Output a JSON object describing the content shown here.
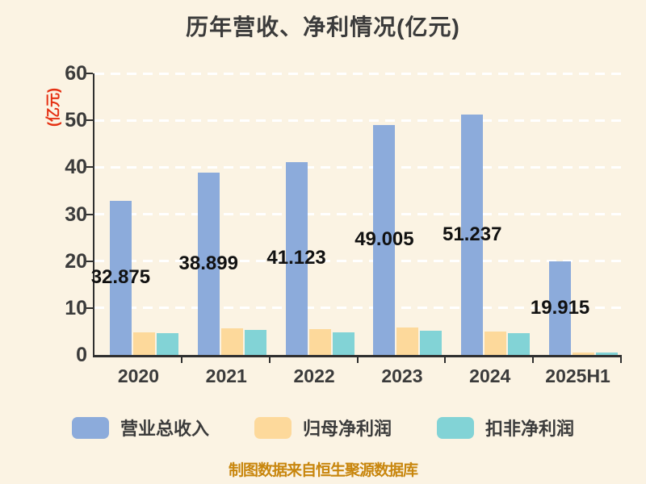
{
  "title": "历年营收、净利情况(亿元)",
  "y_axis_title": "(亿元)",
  "footer": "制图数据来自恒生聚源数据库",
  "colors": {
    "background": "#fbf3e3",
    "axis": "#2f2f2f",
    "grid": "#ffffff",
    "text": "#3b3b3b",
    "value_label": "#111111",
    "y_axis_title": "#e53012",
    "footer": "#c8860d"
  },
  "chart_data": {
    "type": "bar",
    "title": "历年营收、净利情况(亿元)",
    "ylabel": "(亿元)",
    "categories": [
      "2020",
      "2021",
      "2022",
      "2023",
      "2024",
      "2025H1"
    ],
    "series": [
      {
        "name": "营业总收入",
        "color": "#8cabdb",
        "values": [
          32.875,
          38.899,
          41.123,
          49.005,
          51.237,
          19.915
        ]
      },
      {
        "name": "归母净利润",
        "color": "#fdd99b",
        "values": [
          4.8,
          5.7,
          5.5,
          5.8,
          5.0,
          0.6
        ]
      },
      {
        "name": "扣非净利润",
        "color": "#82d3d6",
        "values": [
          4.6,
          5.3,
          4.9,
          5.2,
          4.7,
          0.6
        ]
      }
    ],
    "value_labels_series": "营业总收入",
    "value_labels": [
      "32.875",
      "38.899",
      "41.123",
      "49.005",
      "51.237",
      "19.915"
    ],
    "ylim": [
      0,
      60
    ],
    "yticks": [
      0,
      10,
      20,
      30,
      40,
      50,
      60
    ],
    "grid": "horizontal-dashed-white",
    "legend_position": "bottom"
  }
}
